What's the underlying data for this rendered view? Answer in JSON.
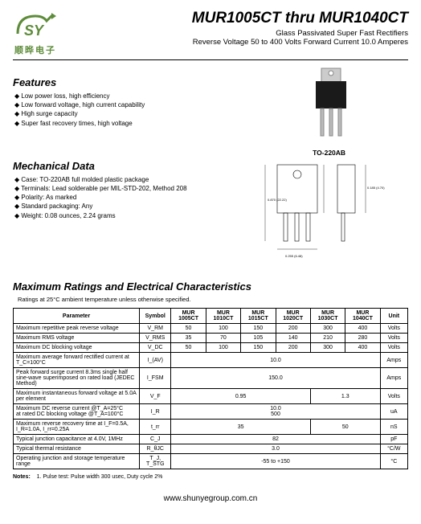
{
  "logo_cn": "顺晔电子",
  "title": "MUR1005CT thru MUR1040CT",
  "subtitle1": "Glass Passivated Super Fast Rectifiers",
  "subtitle2": "Reverse Voltage 50 to 400 Volts    Forward Current 10.0 Amperes",
  "features_heading": "Features",
  "features": [
    "Low power loss, high efficiency",
    "Low forward voltage, high current capability",
    "High surge capacity",
    "Super fast recovery times, high voltage"
  ],
  "pkg_label": "TO-220AB",
  "mech_heading": "Mechanical Data",
  "mech": [
    "Case: TO-220AB full molded plastic package",
    "Terminals: Lead solderable per MIL-STD-202, Method 208",
    "Polarity: As marked",
    "Standard packaging: Any",
    "Weight: 0.08 ounces, 2.24 grams"
  ],
  "ratings_heading": "Maximum Ratings and Electrical Characteristics",
  "ratings_note": "Ratings at 25°C ambient temperature unless otherwise specified.",
  "table": {
    "head": [
      "Parameter",
      "Symbol",
      "MUR 1005CT",
      "MUR 1010CT",
      "MUR 1015CT",
      "MUR 1020CT",
      "MUR 1030CT",
      "MUR 1040CT",
      "Unit"
    ],
    "rows": [
      {
        "p": "Maximum repetitive peak reverse voltage",
        "s": "V_RM",
        "v": [
          "50",
          "100",
          "150",
          "200",
          "300",
          "400"
        ],
        "u": "Volts"
      },
      {
        "p": "Maximum RMS voltage",
        "s": "V_RMS",
        "v": [
          "35",
          "70",
          "105",
          "140",
          "210",
          "280"
        ],
        "u": "Volts"
      },
      {
        "p": "Maximum DC blocking voltage",
        "s": "V_DC",
        "v": [
          "50",
          "100",
          "150",
          "200",
          "300",
          "400"
        ],
        "u": "Volts"
      },
      {
        "p": "Maximum average forward rectified current at T_C=100°C",
        "s": "I_(AV)",
        "span": "10.0",
        "u": "Amps"
      },
      {
        "p": "Peak forward surge current 8.3ms single half sine-wave superimposed on rated load (JEDEC Method)",
        "s": "I_FSM",
        "span": "150.0",
        "u": "Amps"
      },
      {
        "p": "Maximum instantaneous forward voltage at 5.0A per element",
        "s": "V_F",
        "half": [
          "0.95",
          "1.3"
        ],
        "u": "Volts"
      },
      {
        "p": "Maximum DC reverse current    @T_A=25°C\nat rated DC blocking voltage    @T_A=100°C",
        "s": "I_R",
        "span": "10.0\n500",
        "u": "uA"
      },
      {
        "p": "Maximum reverse recovery time at I_F=0.5A, I_R=1.0A, I_rr=0.25A",
        "s": "t_rr",
        "half": [
          "35",
          "50"
        ],
        "u": "nS"
      },
      {
        "p": "Typical junction capacitance at 4.0V, 1MHz",
        "s": "C_J",
        "span": "82",
        "u": "pF"
      },
      {
        "p": "Typical thermal resistance",
        "s": "R_θJC",
        "span": "3.0",
        "u": "°C/W"
      },
      {
        "p": "Operating junction and storage temperature range",
        "s": "T_J, T_STG",
        "span": "-55 to +150",
        "u": "°C"
      }
    ]
  },
  "notes_label": "Notes:",
  "notes_text": "1. Pulse test: Pulse width 300 usec, Duty cycle 2%",
  "footer": "www.shunyegroup.com.cn",
  "colors": {
    "logo_green": "#5e8c3a"
  }
}
